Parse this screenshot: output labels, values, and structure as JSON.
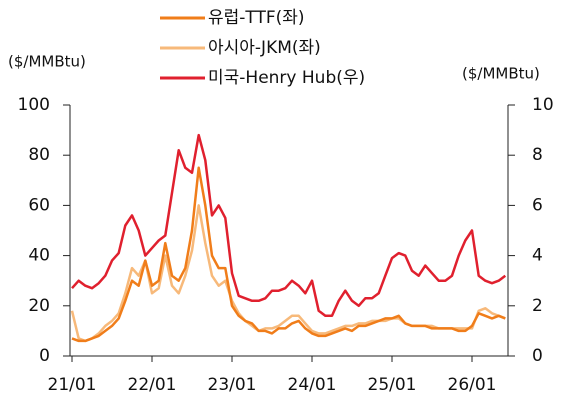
{
  "chart_data": {
    "type": "line",
    "y_label": "($/MMBtu)",
    "y2_label": "($/MMBtu)",
    "x": [
      "21/01",
      "21/02",
      "21/03",
      "21/04",
      "21/05",
      "21/06",
      "21/07",
      "21/08",
      "21/09",
      "21/10",
      "21/11",
      "21/12",
      "22/01",
      "22/02",
      "22/03",
      "22/04",
      "22/05",
      "22/06",
      "22/07",
      "22/08",
      "22/09",
      "22/10",
      "22/11",
      "22/12",
      "23/01",
      "23/02",
      "23/03",
      "23/04",
      "23/05",
      "23/06",
      "23/07",
      "23/08",
      "23/09",
      "23/10",
      "23/11",
      "23/12",
      "24/01",
      "24/02",
      "24/03",
      "24/04",
      "24/05",
      "24/06",
      "24/07",
      "24/08",
      "24/09",
      "24/10",
      "24/11",
      "24/12",
      "25/01",
      "25/02",
      "25/03",
      "25/04",
      "25/05",
      "25/06",
      "25/07",
      "25/08",
      "25/09",
      "25/10",
      "25/11",
      "25/12",
      "26/01",
      "26/02",
      "26/03",
      "26/04",
      "26/05",
      "26/06"
    ],
    "xticks": [
      "21/01",
      "22/01",
      "23/01",
      "24/01",
      "25/01",
      "26/01"
    ],
    "ylim": [
      0,
      100
    ],
    "yticks": [
      0,
      20,
      40,
      60,
      80,
      100
    ],
    "y2lim": [
      0,
      10
    ],
    "y2ticks": [
      0,
      2,
      4,
      6,
      8,
      10
    ],
    "series": [
      {
        "name": "유럽-TTF(좌)",
        "color": "#f07d1a",
        "values": [
          7,
          6,
          6,
          7,
          8,
          10,
          12,
          15,
          22,
          30,
          28,
          38,
          28,
          30,
          45,
          32,
          30,
          35,
          50,
          75,
          60,
          40,
          35,
          35,
          20,
          16,
          14,
          13,
          10,
          10,
          9,
          11,
          11,
          13,
          14,
          11,
          9,
          8,
          8,
          9,
          10,
          11,
          10,
          12,
          12,
          13,
          14,
          15,
          15,
          16,
          13,
          12,
          12,
          12,
          11,
          11,
          11,
          11,
          10,
          10,
          12,
          17,
          16,
          15,
          16,
          15
        ]
      },
      {
        "name": "아시아-JKM(좌)",
        "color": "#f7b97a",
        "values": [
          18,
          7,
          6,
          7,
          9,
          12,
          14,
          17,
          25,
          35,
          32,
          38,
          25,
          27,
          40,
          28,
          25,
          32,
          42,
          60,
          45,
          32,
          28,
          30,
          22,
          17,
          14,
          12,
          10,
          11,
          11,
          12,
          14,
          16,
          16,
          13,
          10,
          9,
          9,
          10,
          11,
          12,
          12,
          13,
          13,
          14,
          14,
          14,
          15,
          15,
          13,
          12,
          12,
          12,
          12,
          11,
          11,
          11,
          11,
          11,
          11,
          18,
          19,
          17,
          16,
          15
        ]
      },
      {
        "name": "미국-Henry Hub(우)",
        "color": "#e0202e",
        "axis": "y2",
        "values": [
          2.7,
          3.0,
          2.8,
          2.7,
          2.9,
          3.2,
          3.8,
          4.1,
          5.2,
          5.6,
          5.0,
          4.0,
          4.3,
          4.6,
          4.8,
          6.5,
          8.2,
          7.5,
          7.3,
          8.8,
          7.8,
          5.6,
          6.0,
          5.5,
          3.3,
          2.4,
          2.3,
          2.2,
          2.2,
          2.3,
          2.6,
          2.6,
          2.7,
          3.0,
          2.8,
          2.5,
          3.0,
          1.8,
          1.6,
          1.6,
          2.2,
          2.6,
          2.2,
          2.0,
          2.3,
          2.3,
          2.5,
          3.2,
          3.9,
          4.1,
          4.0,
          3.4,
          3.2,
          3.6,
          3.3,
          3.0,
          3.0,
          3.2,
          4.0,
          4.6,
          5.0,
          3.2,
          3.0,
          2.9,
          3.0,
          3.2
        ]
      }
    ]
  }
}
